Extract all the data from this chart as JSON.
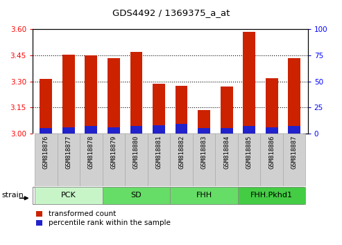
{
  "title": "GDS4492 / 1369375_a_at",
  "samples": [
    "GSM818876",
    "GSM818877",
    "GSM818878",
    "GSM818879",
    "GSM818880",
    "GSM818881",
    "GSM818882",
    "GSM818883",
    "GSM818884",
    "GSM818885",
    "GSM818886",
    "GSM818887"
  ],
  "transformed_count": [
    3.315,
    3.455,
    3.45,
    3.435,
    3.47,
    3.285,
    3.275,
    3.135,
    3.27,
    3.585,
    3.32,
    3.435
  ],
  "percentile_rank": [
    5,
    6,
    7,
    6,
    7,
    8,
    9,
    5,
    5,
    7,
    6,
    7
  ],
  "groups": [
    {
      "name": "PCK",
      "indices": [
        0,
        1,
        2
      ],
      "color": "#c8f5c8"
    },
    {
      "name": "SD",
      "indices": [
        3,
        4,
        5
      ],
      "color": "#66dd66"
    },
    {
      "name": "FHH",
      "indices": [
        6,
        7,
        8
      ],
      "color": "#66dd66"
    },
    {
      "name": "FHH.Pkhd1",
      "indices": [
        9,
        10,
        11
      ],
      "color": "#44cc44"
    }
  ],
  "ylim_left": [
    3.0,
    3.6
  ],
  "ylim_right": [
    0,
    100
  ],
  "yticks_left": [
    3.0,
    3.15,
    3.3,
    3.45,
    3.6
  ],
  "yticks_right": [
    0,
    25,
    50,
    75,
    100
  ],
  "grid_lines": [
    3.15,
    3.3,
    3.45
  ],
  "bar_color_red": "#cc2200",
  "bar_color_blue": "#2222cc",
  "bar_width": 0.55,
  "base_value": 3.0,
  "strain_label": "strain",
  "label_box_color": "#d0d0d0",
  "label_box_edge_color": "#aaaaaa"
}
